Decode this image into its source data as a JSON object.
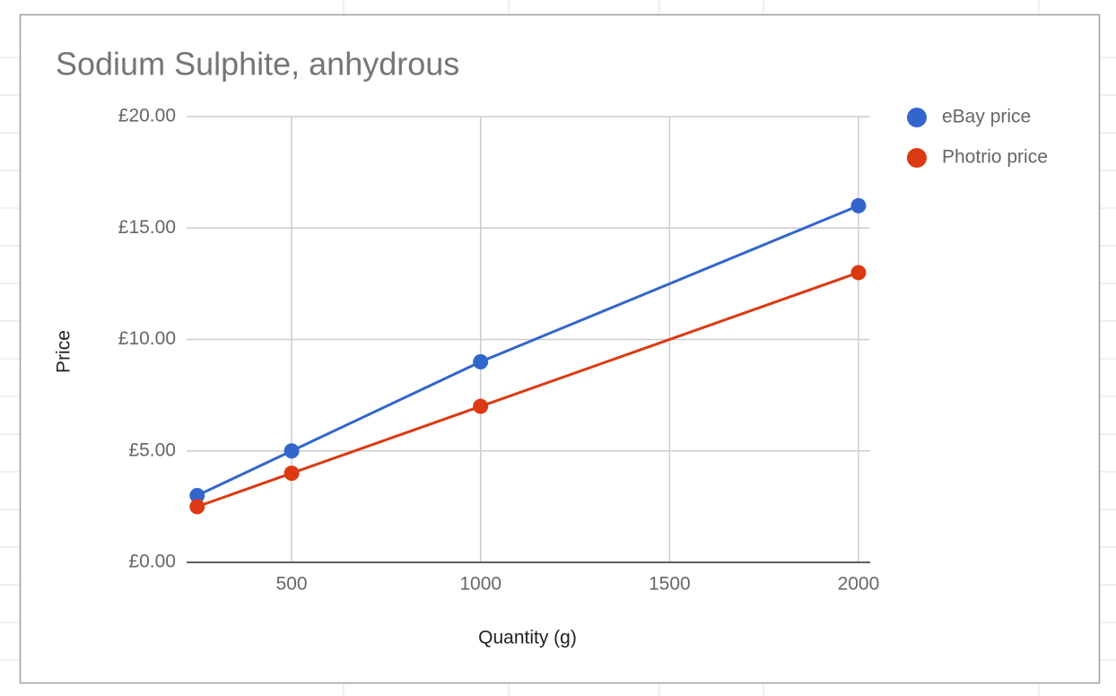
{
  "chart_data": {
    "type": "line",
    "title": "Sodium Sulphite, anhydrous",
    "x_label": "Quantity (g)",
    "y_label": "Price",
    "x": [
      250,
      500,
      1000,
      2000
    ],
    "series": [
      {
        "name": "eBay price",
        "color": "#3366cc",
        "values": [
          3,
          5,
          9,
          16
        ]
      },
      {
        "name": "Photrio price",
        "color": "#dc3912",
        "values": [
          2.5,
          4,
          7,
          13
        ]
      }
    ],
    "xlim": [
      222,
      2031
    ],
    "xticks": [
      500,
      1000,
      1500,
      2000
    ],
    "ylim": [
      0,
      20
    ],
    "yticks": [
      {
        "value": 0,
        "label": "£0.00"
      },
      {
        "value": 5,
        "label": "£5.00"
      },
      {
        "value": 10,
        "label": "£10.00"
      },
      {
        "value": 15,
        "label": "£15.00"
      },
      {
        "value": 20,
        "label": "£20.00"
      }
    ],
    "grid": true,
    "legend": "right"
  }
}
